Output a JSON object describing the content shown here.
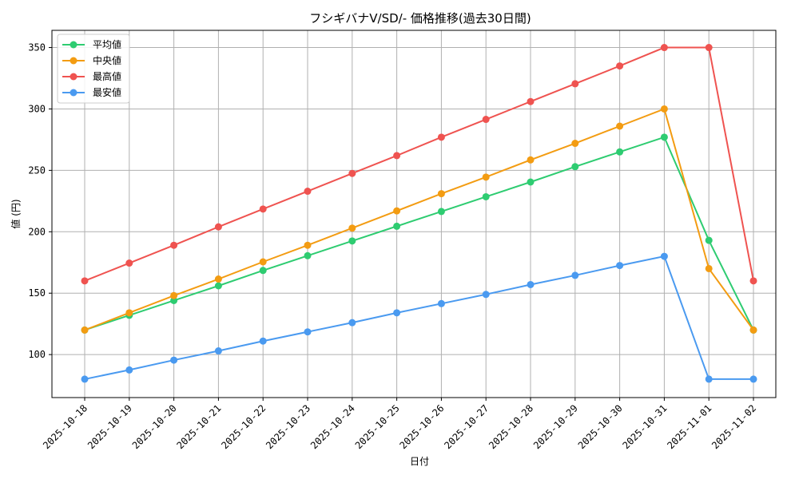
{
  "chart_data": {
    "type": "line",
    "title": "フシギバナV/SD/- 価格推移(過去30日間)",
    "xlabel": "日付",
    "ylabel": "値 (円)",
    "categories": [
      "2025-10-18",
      "2025-10-19",
      "2025-10-20",
      "2025-10-21",
      "2025-10-22",
      "2025-10-23",
      "2025-10-24",
      "2025-10-25",
      "2025-10-26",
      "2025-10-27",
      "2025-10-28",
      "2025-10-29",
      "2025-10-30",
      "2025-10-31",
      "2025-11-01",
      "2025-11-02"
    ],
    "ylim": [
      65,
      364
    ],
    "yticks": [
      100,
      150,
      200,
      250,
      300,
      350
    ],
    "grid": true,
    "legend_position": "top-left",
    "series": [
      {
        "name": "平均値",
        "color": "#2ecc71",
        "values": [
          120,
          132,
          144,
          156,
          168.5,
          180.5,
          192.5,
          204.5,
          216.5,
          228.5,
          240.5,
          253,
          265,
          277,
          193,
          120
        ]
      },
      {
        "name": "中央値",
        "color": "#f39c12",
        "values": [
          120,
          134,
          148,
          161.5,
          175.5,
          189,
          203,
          217,
          231,
          244.5,
          258.5,
          272,
          286,
          300,
          170,
          120
        ]
      },
      {
        "name": "最高値",
        "color": "#ef5350",
        "values": [
          160,
          174.5,
          189,
          204,
          218.5,
          233,
          247.5,
          262,
          277,
          291.5,
          306,
          320.5,
          335,
          350,
          350,
          160
        ]
      },
      {
        "name": "最安値",
        "color": "#4a9af0",
        "values": [
          80,
          87.5,
          95.5,
          103,
          111,
          118.5,
          126,
          134,
          141.5,
          149,
          157,
          164.5,
          172.5,
          180,
          80,
          80
        ]
      }
    ]
  }
}
